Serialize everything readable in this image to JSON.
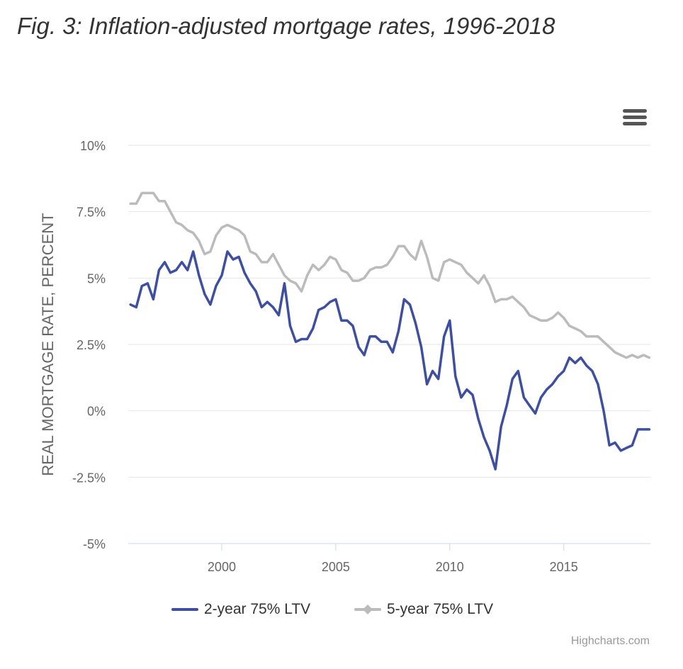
{
  "title": "Fig. 3: Inflation-adjusted mortgage rates, 1996-2018",
  "menu": {
    "icon": "hamburger-menu-icon"
  },
  "credits": "Highcharts.com",
  "colors": {
    "series1": "#3f4fa0",
    "series2": "#bbbbbb",
    "grid": "#e6e6e6",
    "axis": "#ccd6eb",
    "text": "#666666"
  },
  "chart_data": {
    "type": "line",
    "ylabel": "REAL MORTGAGE RATE, PERCENT",
    "xlabel": "",
    "ylim": [
      -5,
      10
    ],
    "xlim": [
      1995.9,
      2018.8
    ],
    "yticks": [
      -5,
      -2.5,
      0,
      2.5,
      5,
      7.5,
      10
    ],
    "ytick_labels": [
      "-5%",
      "-2.5%",
      "0%",
      "2.5%",
      "5%",
      "7.5%",
      "10%"
    ],
    "xticks": [
      2000,
      2005,
      2010,
      2015
    ],
    "xtick_labels": [
      "2000",
      "2005",
      "2010",
      "2015"
    ],
    "grid": true,
    "legend_position": "bottom-center",
    "series": [
      {
        "name": "2-year 75% LTV",
        "color": "#3f4fa0",
        "x": [
          1996.0,
          1996.25,
          1996.5,
          1996.75,
          1997.0,
          1997.25,
          1997.5,
          1997.75,
          1998.0,
          1998.25,
          1998.5,
          1998.75,
          1999.0,
          1999.25,
          1999.5,
          1999.75,
          2000.0,
          2000.25,
          2000.5,
          2000.75,
          2001.0,
          2001.25,
          2001.5,
          2001.75,
          2002.0,
          2002.25,
          2002.5,
          2002.75,
          2003.0,
          2003.25,
          2003.5,
          2003.75,
          2004.0,
          2004.25,
          2004.5,
          2004.75,
          2005.0,
          2005.25,
          2005.5,
          2005.75,
          2006.0,
          2006.25,
          2006.5,
          2006.75,
          2007.0,
          2007.25,
          2007.5,
          2007.75,
          2008.0,
          2008.25,
          2008.5,
          2008.75,
          2009.0,
          2009.25,
          2009.5,
          2009.75,
          2010.0,
          2010.25,
          2010.5,
          2010.75,
          2011.0,
          2011.25,
          2011.5,
          2011.75,
          2012.0,
          2012.25,
          2012.5,
          2012.75,
          2013.0,
          2013.25,
          2013.5,
          2013.75,
          2014.0,
          2014.25,
          2014.5,
          2014.75,
          2015.0,
          2015.25,
          2015.5,
          2015.75,
          2016.0,
          2016.25,
          2016.5,
          2016.75,
          2017.0,
          2017.25,
          2017.5,
          2017.75,
          2018.0,
          2018.25,
          2018.5,
          2018.75
        ],
        "values": [
          4.0,
          3.9,
          4.7,
          4.8,
          4.2,
          5.3,
          5.6,
          5.2,
          5.3,
          5.6,
          5.3,
          6.0,
          5.1,
          4.4,
          4.0,
          4.7,
          5.1,
          6.0,
          5.7,
          5.8,
          5.2,
          4.8,
          4.5,
          3.9,
          4.1,
          3.9,
          3.6,
          4.8,
          3.2,
          2.6,
          2.7,
          2.7,
          3.1,
          3.8,
          3.9,
          4.1,
          4.2,
          3.4,
          3.4,
          3.2,
          2.4,
          2.1,
          2.8,
          2.8,
          2.6,
          2.6,
          2.2,
          3.0,
          4.2,
          4.0,
          3.3,
          2.4,
          1.0,
          1.5,
          1.2,
          2.8,
          3.4,
          1.3,
          0.5,
          0.8,
          0.6,
          -0.3,
          -1.0,
          -1.5,
          -2.2,
          -0.6,
          0.2,
          1.2,
          1.5,
          0.5,
          0.2,
          -0.1,
          0.5,
          0.8,
          1.0,
          1.3,
          1.5,
          2.0,
          1.8,
          2.0,
          1.7,
          1.5,
          1.0,
          0.0,
          -1.3,
          -1.2,
          -1.5,
          -1.4,
          -1.3,
          -0.7,
          -0.7,
          -0.7
        ]
      },
      {
        "name": "5-year 75% LTV",
        "color": "#bbbbbb",
        "x": [
          1996.0,
          1996.25,
          1996.5,
          1996.75,
          1997.0,
          1997.25,
          1997.5,
          1997.75,
          1998.0,
          1998.25,
          1998.5,
          1998.75,
          1999.0,
          1999.25,
          1999.5,
          1999.75,
          2000.0,
          2000.25,
          2000.5,
          2000.75,
          2001.0,
          2001.25,
          2001.5,
          2001.75,
          2002.0,
          2002.25,
          2002.5,
          2002.75,
          2003.0,
          2003.25,
          2003.5,
          2003.75,
          2004.0,
          2004.25,
          2004.5,
          2004.75,
          2005.0,
          2005.25,
          2005.5,
          2005.75,
          2006.0,
          2006.25,
          2006.5,
          2006.75,
          2007.0,
          2007.25,
          2007.5,
          2007.75,
          2008.0,
          2008.25,
          2008.5,
          2008.75,
          2009.0,
          2009.25,
          2009.5,
          2009.75,
          2010.0,
          2010.25,
          2010.5,
          2010.75,
          2011.0,
          2011.25,
          2011.5,
          2011.75,
          2012.0,
          2012.25,
          2012.5,
          2012.75,
          2013.0,
          2013.25,
          2013.5,
          2013.75,
          2014.0,
          2014.25,
          2014.5,
          2014.75,
          2015.0,
          2015.25,
          2015.5,
          2015.75,
          2016.0,
          2016.25,
          2016.5,
          2016.75,
          2017.0,
          2017.25,
          2017.5,
          2017.75,
          2018.0,
          2018.25,
          2018.5,
          2018.75
        ],
        "values": [
          7.8,
          7.8,
          8.2,
          8.2,
          8.2,
          7.9,
          7.9,
          7.5,
          7.1,
          7.0,
          6.8,
          6.7,
          6.4,
          5.9,
          6.0,
          6.6,
          6.9,
          7.0,
          6.9,
          6.8,
          6.6,
          6.0,
          5.9,
          5.6,
          5.6,
          5.9,
          5.5,
          5.1,
          4.9,
          4.8,
          4.5,
          5.1,
          5.5,
          5.3,
          5.5,
          5.8,
          5.7,
          5.3,
          5.2,
          4.9,
          4.9,
          5.0,
          5.3,
          5.4,
          5.4,
          5.5,
          5.8,
          6.2,
          6.2,
          5.9,
          5.7,
          6.4,
          5.8,
          5.0,
          4.9,
          5.6,
          5.7,
          5.6,
          5.5,
          5.2,
          5.0,
          4.8,
          5.1,
          4.7,
          4.1,
          4.2,
          4.2,
          4.3,
          4.1,
          3.9,
          3.6,
          3.5,
          3.4,
          3.4,
          3.5,
          3.7,
          3.5,
          3.2,
          3.1,
          3.0,
          2.8,
          2.8,
          2.8,
          2.6,
          2.4,
          2.2,
          2.1,
          2.0,
          2.1,
          2.0,
          2.1,
          2.0
        ]
      }
    ]
  }
}
